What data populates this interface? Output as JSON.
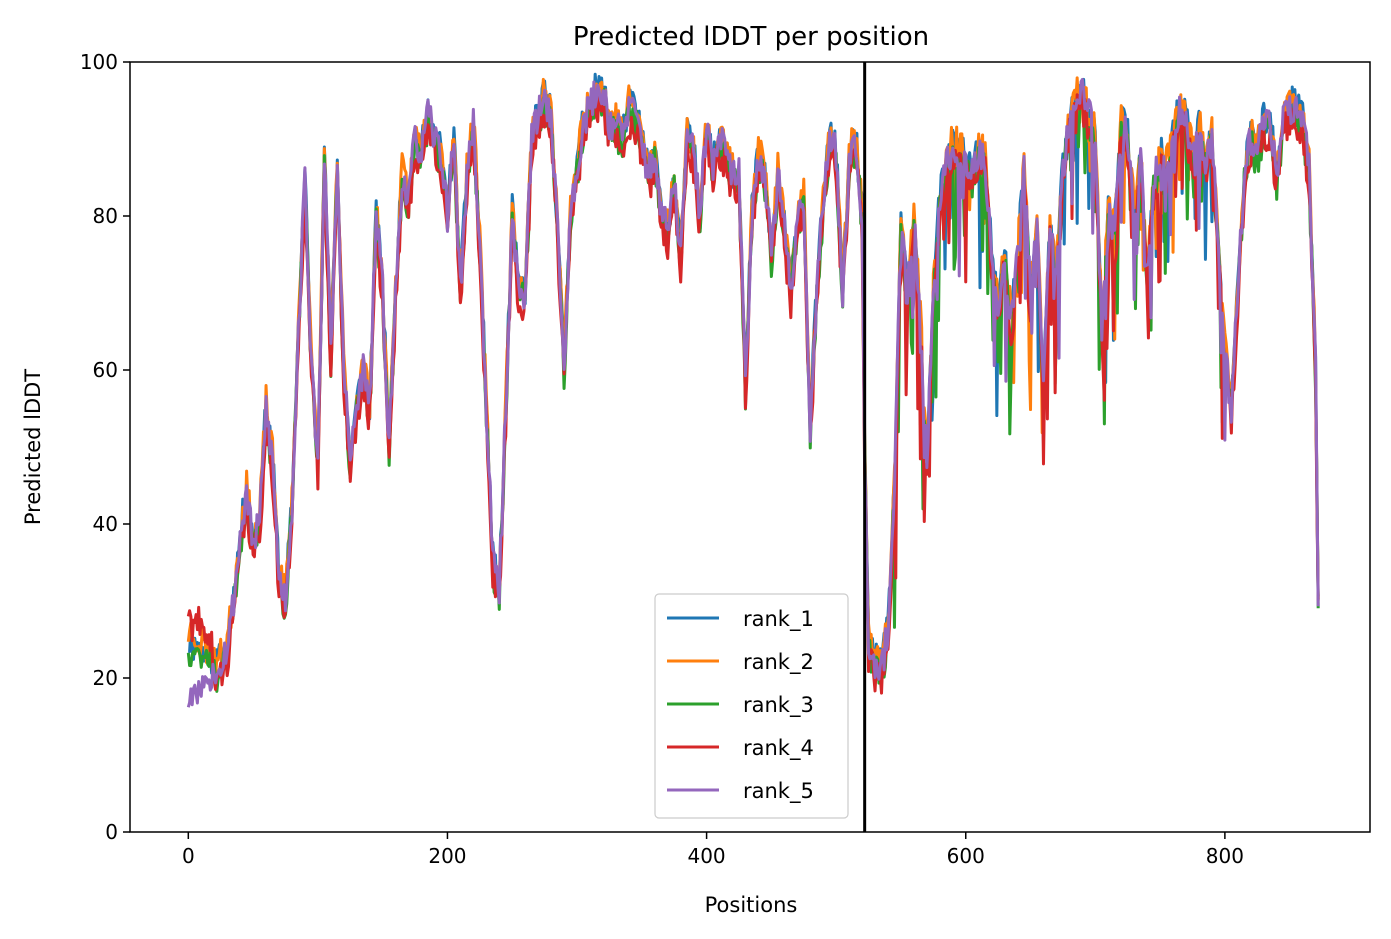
{
  "chart_data": {
    "type": "line",
    "title": "Predicted lDDT per position",
    "xlabel": "Positions",
    "ylabel": "Predicted lDDT",
    "xlim": [
      -45,
      912
    ],
    "ylim": [
      0,
      100
    ],
    "xticks": [
      0,
      200,
      400,
      600,
      800
    ],
    "yticks": [
      0,
      20,
      40,
      60,
      80,
      100
    ],
    "grid": false,
    "legend_position": "lower-center",
    "chain_break": 522,
    "keypoints": [
      [
        0,
        25
      ],
      [
        5,
        27
      ],
      [
        10,
        26
      ],
      [
        15,
        23
      ],
      [
        20,
        21
      ],
      [
        25,
        22
      ],
      [
        30,
        24
      ],
      [
        35,
        30
      ],
      [
        40,
        38
      ],
      [
        45,
        44
      ],
      [
        50,
        37
      ],
      [
        55,
        40
      ],
      [
        60,
        55
      ],
      [
        65,
        48
      ],
      [
        70,
        33
      ],
      [
        75,
        30
      ],
      [
        80,
        42
      ],
      [
        85,
        65
      ],
      [
        90,
        85
      ],
      [
        95,
        60
      ],
      [
        100,
        48
      ],
      [
        105,
        88
      ],
      [
        110,
        62
      ],
      [
        115,
        86
      ],
      [
        120,
        60
      ],
      [
        125,
        48
      ],
      [
        130,
        55
      ],
      [
        135,
        60
      ],
      [
        140,
        55
      ],
      [
        145,
        80
      ],
      [
        150,
        70
      ],
      [
        155,
        50
      ],
      [
        160,
        70
      ],
      [
        165,
        85
      ],
      [
        170,
        82
      ],
      [
        175,
        90
      ],
      [
        180,
        88
      ],
      [
        185,
        93
      ],
      [
        190,
        90
      ],
      [
        195,
        88
      ],
      [
        200,
        80
      ],
      [
        205,
        90
      ],
      [
        210,
        70
      ],
      [
        215,
        85
      ],
      [
        220,
        92
      ],
      [
        225,
        76
      ],
      [
        230,
        55
      ],
      [
        235,
        35
      ],
      [
        240,
        31
      ],
      [
        245,
        55
      ],
      [
        250,
        80
      ],
      [
        255,
        70
      ],
      [
        260,
        70
      ],
      [
        265,
        90
      ],
      [
        270,
        93
      ],
      [
        275,
        95
      ],
      [
        280,
        93
      ],
      [
        285,
        78
      ],
      [
        290,
        60
      ],
      [
        295,
        80
      ],
      [
        300,
        86
      ],
      [
        305,
        92
      ],
      [
        310,
        94
      ],
      [
        315,
        96
      ],
      [
        320,
        96
      ],
      [
        325,
        92
      ],
      [
        330,
        92
      ],
      [
        335,
        90
      ],
      [
        340,
        94
      ],
      [
        345,
        93
      ],
      [
        350,
        90
      ],
      [
        355,
        85
      ],
      [
        360,
        88
      ],
      [
        365,
        80
      ],
      [
        370,
        78
      ],
      [
        375,
        84
      ],
      [
        380,
        75
      ],
      [
        385,
        90
      ],
      [
        390,
        88
      ],
      [
        395,
        80
      ],
      [
        400,
        92
      ],
      [
        405,
        86
      ],
      [
        410,
        90
      ],
      [
        415,
        88
      ],
      [
        420,
        85
      ],
      [
        425,
        85
      ],
      [
        430,
        58
      ],
      [
        435,
        80
      ],
      [
        440,
        88
      ],
      [
        445,
        85
      ],
      [
        450,
        75
      ],
      [
        455,
        85
      ],
      [
        460,
        78
      ],
      [
        465,
        70
      ],
      [
        470,
        80
      ],
      [
        475,
        82
      ],
      [
        480,
        52
      ],
      [
        485,
        70
      ],
      [
        490,
        82
      ],
      [
        495,
        90
      ],
      [
        500,
        88
      ],
      [
        505,
        70
      ],
      [
        510,
        87
      ],
      [
        515,
        90
      ],
      [
        520,
        80
      ],
      [
        522,
        50
      ],
      [
        525,
        24
      ],
      [
        530,
        22
      ],
      [
        535,
        21
      ],
      [
        540,
        26
      ],
      [
        545,
        45
      ],
      [
        550,
        78
      ],
      [
        555,
        70
      ],
      [
        560,
        80
      ],
      [
        565,
        66
      ],
      [
        570,
        48
      ],
      [
        575,
        70
      ],
      [
        580,
        82
      ],
      [
        585,
        86
      ],
      [
        590,
        89
      ],
      [
        595,
        88
      ],
      [
        600,
        87
      ],
      [
        605,
        85
      ],
      [
        610,
        88
      ],
      [
        615,
        87
      ],
      [
        620,
        75
      ],
      [
        625,
        68
      ],
      [
        630,
        75
      ],
      [
        635,
        66
      ],
      [
        640,
        75
      ],
      [
        645,
        86
      ],
      [
        650,
        70
      ],
      [
        655,
        78
      ],
      [
        660,
        58
      ],
      [
        665,
        78
      ],
      [
        670,
        72
      ],
      [
        675,
        86
      ],
      [
        680,
        92
      ],
      [
        685,
        95
      ],
      [
        690,
        96
      ],
      [
        695,
        93
      ],
      [
        700,
        90
      ],
      [
        705,
        65
      ],
      [
        710,
        80
      ],
      [
        715,
        78
      ],
      [
        720,
        92
      ],
      [
        725,
        90
      ],
      [
        730,
        80
      ],
      [
        735,
        88
      ],
      [
        740,
        72
      ],
      [
        745,
        84
      ],
      [
        750,
        88
      ],
      [
        755,
        86
      ],
      [
        760,
        90
      ],
      [
        765,
        94
      ],
      [
        770,
        92
      ],
      [
        775,
        88
      ],
      [
        780,
        92
      ],
      [
        785,
        87
      ],
      [
        790,
        90
      ],
      [
        795,
        76
      ],
      [
        800,
        62
      ],
      [
        805,
        55
      ],
      [
        810,
        70
      ],
      [
        815,
        85
      ],
      [
        820,
        90
      ],
      [
        825,
        88
      ],
      [
        830,
        92
      ],
      [
        835,
        92
      ],
      [
        840,
        85
      ],
      [
        845,
        92
      ],
      [
        850,
        94
      ],
      [
        855,
        94
      ],
      [
        860,
        92
      ],
      [
        865,
        86
      ],
      [
        870,
        60
      ],
      [
        872,
        30
      ]
    ],
    "series": [
      {
        "name": "rank_1",
        "color": "#1f77b4",
        "seed": 11,
        "offset": 0.6,
        "start": 25
      },
      {
        "name": "rank_2",
        "color": "#ff7f0e",
        "seed": 23,
        "offset": 0.9,
        "start": 26
      },
      {
        "name": "rank_3",
        "color": "#2ca02c",
        "seed": 37,
        "offset": -0.9,
        "start": 24
      },
      {
        "name": "rank_4",
        "color": "#d62728",
        "seed": 41,
        "offset": -1.6,
        "start": 28
      },
      {
        "name": "rank_5",
        "color": "#9467bd",
        "seed": 53,
        "offset": 0.2,
        "start": 18
      }
    ]
  }
}
